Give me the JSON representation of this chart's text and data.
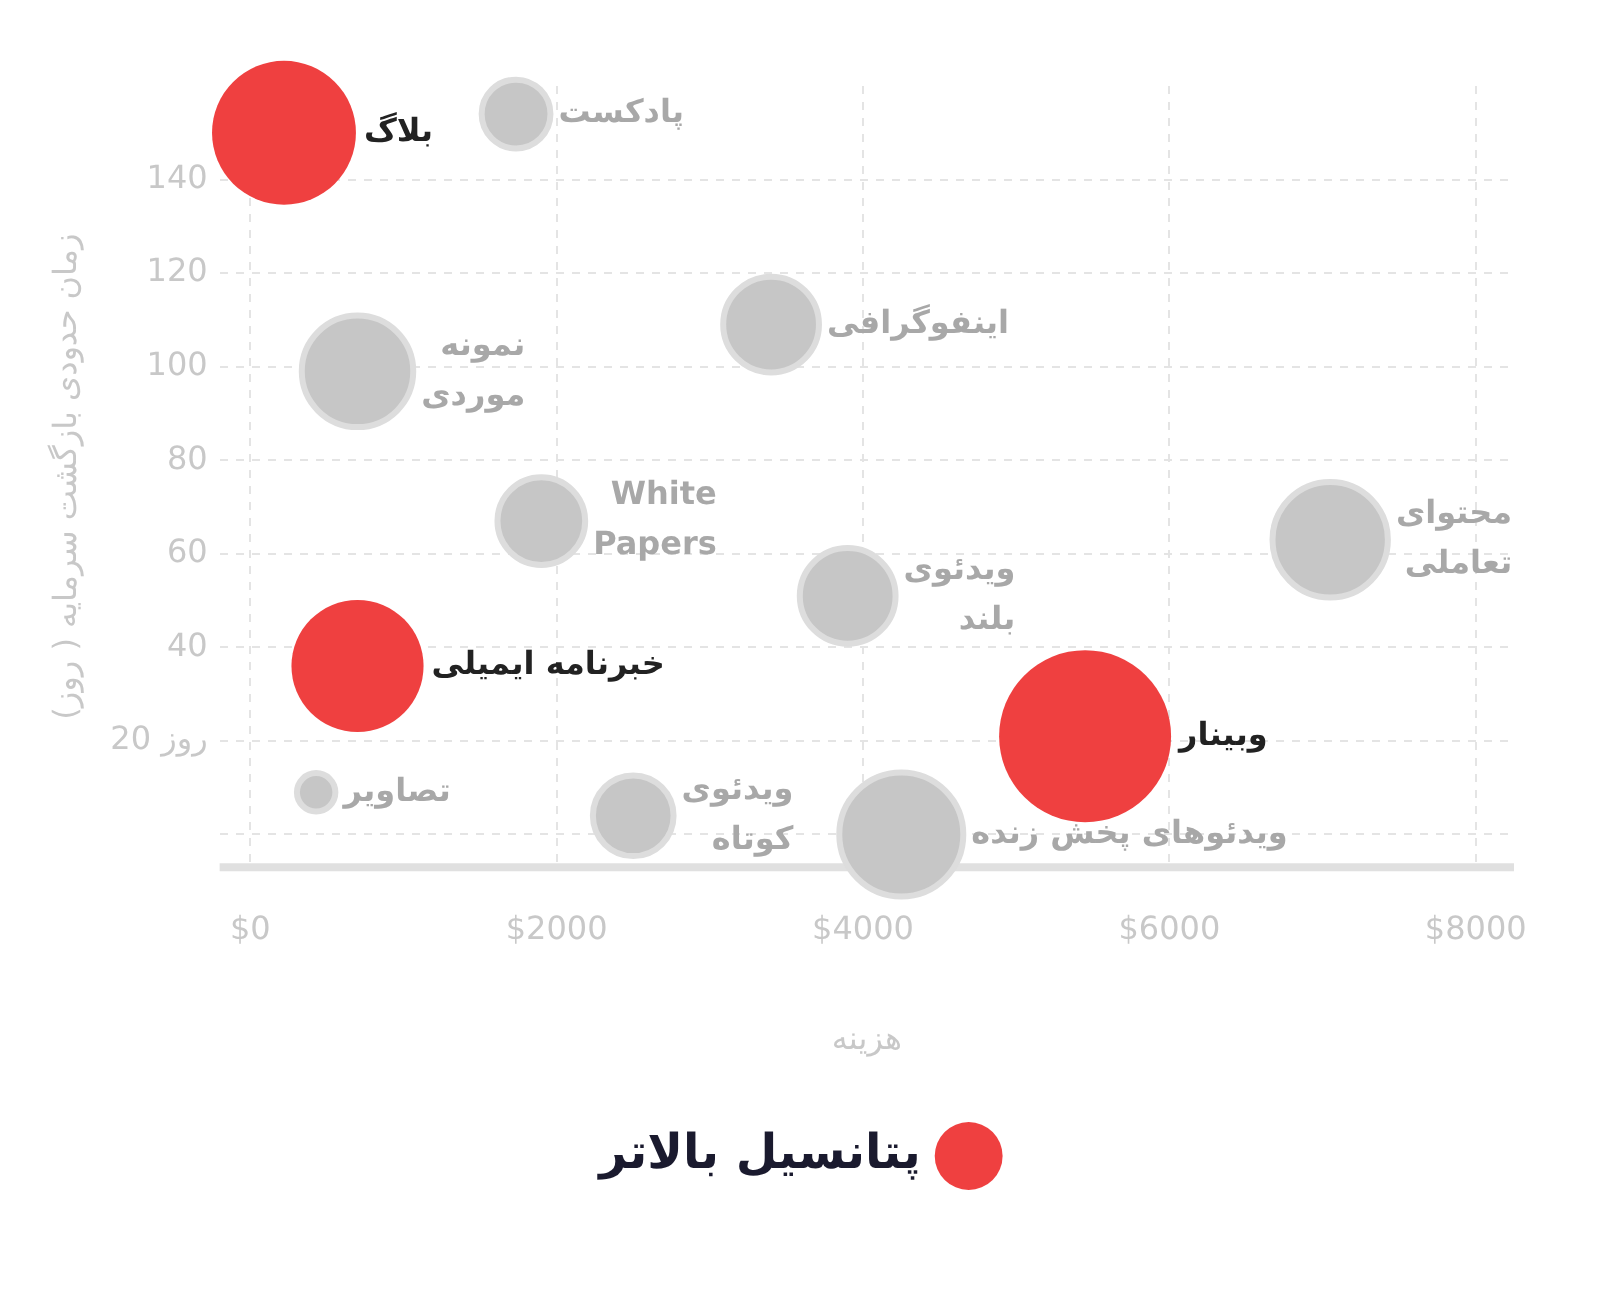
{
  "chart_data": {
    "type": "bubble",
    "xlabel": "هزینه",
    "ylabel": "زمان حدودی بازگشت سرمایه ( روز)",
    "xlim": [
      -200,
      8250
    ],
    "xticks": [
      {
        "value": 0,
        "label": "$0"
      },
      {
        "value": 2000,
        "label": "$2000"
      },
      {
        "value": 4000,
        "label": "$4000"
      },
      {
        "value": 6000,
        "label": "$6000"
      },
      {
        "value": 8000,
        "label": "$8000"
      }
    ],
    "ylim": [
      -7,
      160
    ],
    "yticks": [
      {
        "value": 0,
        "label": null
      },
      {
        "value": 20,
        "label": "20 روز"
      },
      40,
      60,
      80,
      100,
      120,
      140
    ],
    "grid": true,
    "legend": "bottom",
    "series": [
      {
        "name": "پتانسیل بالاتر",
        "color": "#ef4040",
        "x": [
          220,
          700,
          5450
        ],
        "values": [
          150,
          36,
          21
        ],
        "sizes": [
          0.7,
          0.59,
          1
        ]
      },
      {
        "color": "#c6c6c6",
        "x": [
          1735,
          700,
          3400,
          1900,
          7050,
          3900,
          430,
          2500,
          4250
        ],
        "values": [
          154,
          99,
          109,
          67,
          63,
          51,
          9,
          4,
          0
        ],
        "sizes": [
          0.16,
          0.42,
          0.31,
          0.26,
          0.45,
          0.31,
          0.05,
          0.22,
          0.52
        ]
      }
    ],
    "annotations": [
      {
        "text": "بلاگ",
        "x": 220,
        "y": 150
      },
      {
        "text": "خبرنامه ایمیلی",
        "x": 700,
        "y": 36
      },
      {
        "text": "وبینار",
        "x": 5450,
        "y": 21
      },
      {
        "text": "پادکست",
        "x": 1735,
        "y": 154
      },
      {
        "text": "نمونه\nموردی",
        "x": 700,
        "y": 99
      },
      {
        "text": "اینفوگرافی",
        "x": 3400,
        "y": 109
      },
      {
        "text": "White\nPapers",
        "x": 1900,
        "y": 67
      },
      {
        "text": "محتوای\nتعاملی",
        "x": 7050,
        "y": 63
      },
      {
        "text": "ویدئوی\nبلند",
        "x": 3900,
        "y": 51
      },
      {
        "text": "تصاویر",
        "x": 430,
        "y": 9
      },
      {
        "text": "ویدئوی\nکوتاه",
        "x": 2500,
        "y": 4
      },
      {
        "text": "ویدئوهای پخش زنده",
        "x": 4250,
        "y": 0
      }
    ]
  }
}
